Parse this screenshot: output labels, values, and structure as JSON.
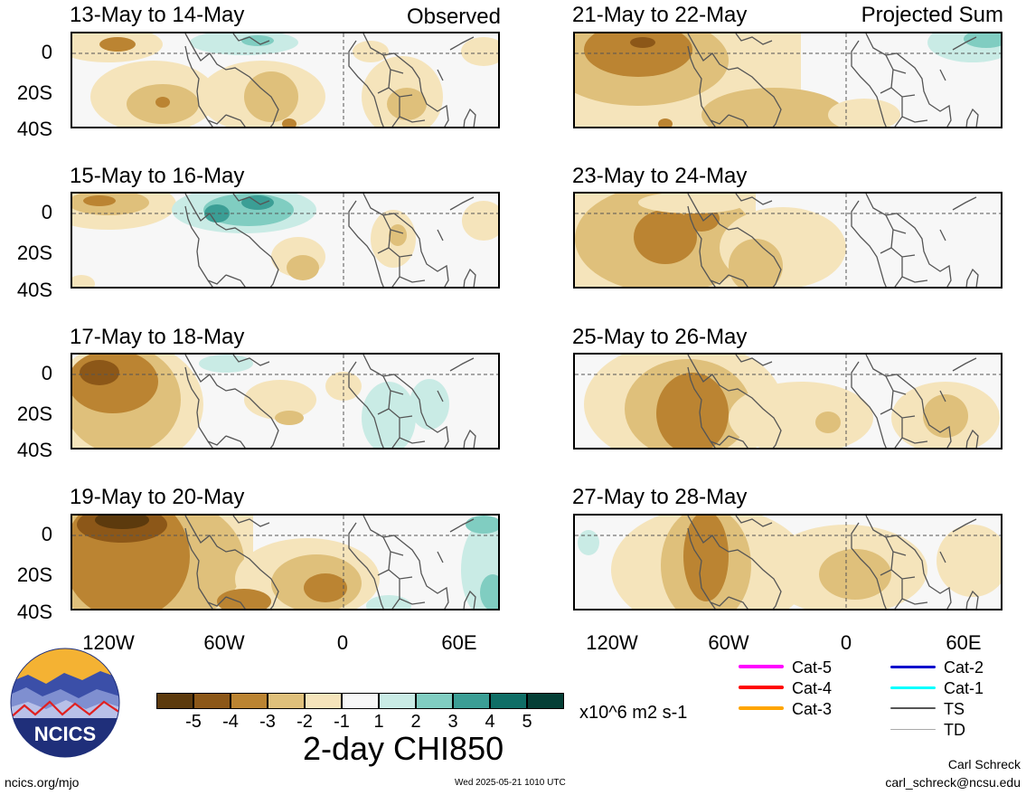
{
  "header": {
    "observed_label": "Observed",
    "projected_label": "Projected Sum"
  },
  "panels_left": [
    {
      "title": "13-May to 14-May"
    },
    {
      "title": "15-May to 16-May"
    },
    {
      "title": "17-May to 18-May"
    },
    {
      "title": "19-May to 20-May"
    }
  ],
  "panels_right": [
    {
      "title": "21-May to 22-May"
    },
    {
      "title": "23-May to 24-May"
    },
    {
      "title": "25-May to 26-May"
    },
    {
      "title": "27-May to 28-May"
    }
  ],
  "axes": {
    "y_ticks": [
      "0",
      "20S",
      "40S"
    ],
    "x_ticks": [
      "120W",
      "60W",
      "0",
      "60E"
    ]
  },
  "colorbar": {
    "colors": [
      "#5c3a0d",
      "#8c5718",
      "#bb8432",
      "#dfc07b",
      "#f5e4bb",
      "#f7f7f7",
      "#c9ebe5",
      "#80cdc1",
      "#3b9e95",
      "#0f6e66",
      "#053f36"
    ],
    "tick_labels": [
      "-5",
      "-4",
      "-3",
      "-2",
      "-1",
      "1",
      "2",
      "3",
      "4",
      "5"
    ],
    "units": "x10^6 m2 s-1"
  },
  "title": "2-day CHI850",
  "legend": {
    "items": [
      {
        "label": "Cat-5",
        "color": "#ff00ff"
      },
      {
        "label": "Cat-4",
        "color": "#ff0000"
      },
      {
        "label": "Cat-3",
        "color": "#ffa500"
      },
      {
        "label": "Cat-2",
        "color": "#0000cc"
      },
      {
        "label": "Cat-1",
        "color": "#00ffff"
      },
      {
        "label": "TS",
        "color": "#555555"
      },
      {
        "label": "TD",
        "color": "#aaaaaa"
      }
    ]
  },
  "logo": {
    "text": "NCICS"
  },
  "footer": {
    "website": "ncics.org/mjo",
    "timestamp": "Wed 2025-05-21 1010 UTC",
    "author": "Carl Schreck",
    "email": "carl_schreck@ncsu.edu"
  }
}
